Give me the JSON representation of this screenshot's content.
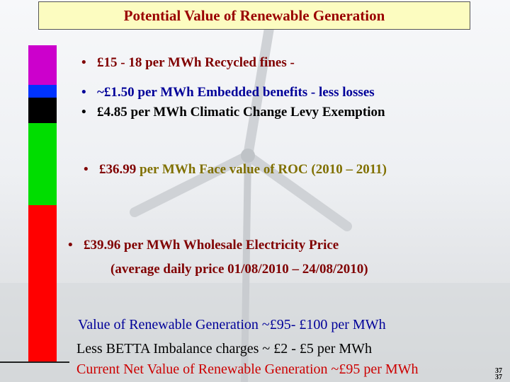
{
  "slide": {
    "title": "Potential  Value of Renewable Generation",
    "colors": {
      "title_text": "#9a0000",
      "title_bg": "#fcfcc0",
      "bar_magenta": "#cc00cc",
      "bar_blue": "#0033ff",
      "bar_black": "#000000",
      "bar_green": "#00dd00",
      "bar_red": "#ff0000",
      "text_maroon": "#800000",
      "text_olive": "#807000",
      "text_blue": "#000099",
      "text_black": "#000000",
      "text_red": "#cc0000"
    },
    "stack_bar_segments": [
      {
        "name": "recycled-fines",
        "color": "#cc00cc",
        "value_low": 15,
        "value_high": 18
      },
      {
        "name": "embedded-benefits",
        "color": "#0033ff",
        "value": 1.5
      },
      {
        "name": "climate-change-levy",
        "color": "#000000",
        "value": 4.85
      },
      {
        "name": "roc-face-value",
        "color": "#00dd00",
        "value": 36.99
      },
      {
        "name": "wholesale-price",
        "color": "#ff0000",
        "value": 39.96
      }
    ],
    "bullets": {
      "recycled_fines": "£15 - 18 per MWh Recycled fines -",
      "embedded_benefits": "~£1.50 per MWh Embedded benefits - less losses",
      "ccl": "£4.85 per MWh Climatic Change Levy Exemption",
      "roc_amount": "£36.99",
      "roc_text": "per MWh Face value of ROC   (2010 – 2011)",
      "wholesale_line1": "£39.96 per MWh Wholesale Electricity Price",
      "wholesale_line2": "(average daily price 01/08/2010 – 24/08/2010)",
      "bullet_glyph": "•"
    },
    "summary": {
      "value_line": "Value of Renewable Generation ~£95- £100 per MWh",
      "betta_line": "Less BETTA Imbalance charges ~  £2 - £5 per MWh",
      "net_line": "Current Net Value of Renewable Generation ~£95 per MWh"
    },
    "page_number_a": "37",
    "page_number_b": "37"
  }
}
